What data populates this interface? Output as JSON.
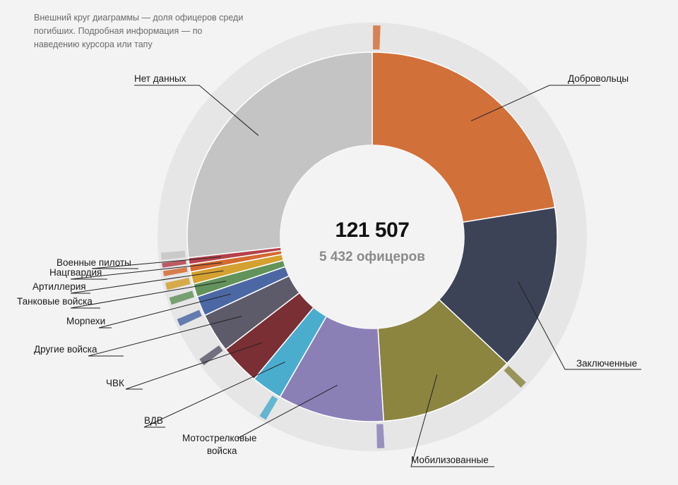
{
  "note": "Внешний круг диаграммы — доля офицеров среди погибших. Подробная информация — по наведению курсора или тапу",
  "center": {
    "total": "121 507",
    "officers": "5 432 офицеров"
  },
  "chart_data": {
    "type": "pie",
    "total": 121507,
    "officers_total": 5432,
    "categories": [
      "Добровольцы",
      "Заключенные",
      "Мобилизованные",
      "Мотострелковые войска",
      "ВДВ",
      "ЧВК",
      "Другие войска",
      "Морпехи",
      "Танковые войска",
      "Артиллерия",
      "Нацгвардия",
      "Военные пилоты",
      "Нет данных"
    ],
    "values": [
      27300,
      17700,
      14600,
      11300,
      3300,
      4300,
      4200,
      2100,
      1400,
      1300,
      800,
      700,
      32600
    ],
    "officer_share_shown": [
      true,
      false,
      true,
      true,
      true,
      false,
      true,
      true,
      true,
      true,
      true,
      true,
      true
    ],
    "colors": {
      "Добровольцы": "#d2703a",
      "Заключенные": "#3c4356",
      "Мобилизованные": "#8b8540",
      "Мотострелковые войска": "#8a80b6",
      "ВДВ": "#4badce",
      "ЧВК": "#7a2f34",
      "Другие войска": "#5d5b6a",
      "Морпехи": "#4c68a4",
      "Танковые войска": "#62935a",
      "Артиллерия": "#d4a030",
      "Нацгвардия": "#d36a30",
      "Военные пилоты": "#b4424b",
      "Нет данных": "#c4c4c4"
    },
    "labels": [
      {
        "category": "Добровольцы",
        "text": "Добровольцы"
      },
      {
        "category": "Заключенные",
        "text": "Заключенные"
      },
      {
        "category": "Мобилизованные",
        "text": "Мобилизованные"
      },
      {
        "category": "Мотострелковые войска",
        "text": "Мотострелковые"
      },
      {
        "category": "Мотострелковые войска",
        "text": "войска"
      },
      {
        "category": "ВДВ",
        "text": "ВДВ"
      },
      {
        "category": "ЧВК",
        "text": "ЧВК"
      },
      {
        "category": "Другие войска",
        "text": "Другие войска"
      },
      {
        "category": "Морпехи",
        "text": "Морпехи"
      },
      {
        "category": "Танковые войска",
        "text": "Танковые войска"
      },
      {
        "category": "Артиллерия",
        "text": "Артиллерия"
      },
      {
        "category": "Нацгвардия",
        "text": "Нацгвардия"
      },
      {
        "category": "Военные пилоты",
        "text": "Военные пилоты"
      },
      {
        "category": "Нет данных",
        "text": "Нет данных"
      }
    ]
  }
}
